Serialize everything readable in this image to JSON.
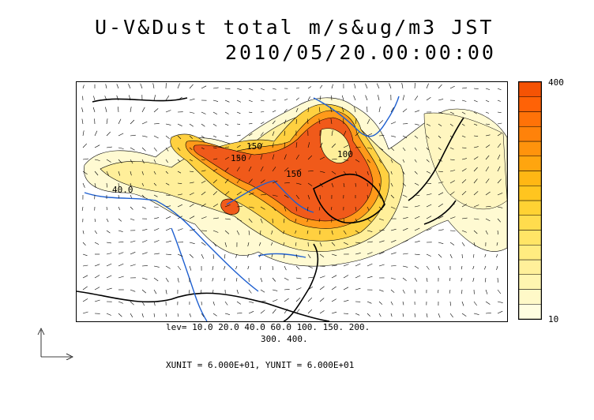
{
  "title": {
    "line1": "U-V&Dust total m/s&ug/m3 JST",
    "line2": "2010/05/20.00:00:00"
  },
  "colorbar": {
    "max_label": "400",
    "min_label": "10",
    "colors": [
      "#fffde0",
      "#fff9c8",
      "#fff5b0",
      "#fff09a",
      "#ffec80",
      "#ffe566",
      "#ffdc4d",
      "#ffd233",
      "#ffc51f",
      "#ffb714",
      "#ffa50f",
      "#ff930c",
      "#ff820a",
      "#ff7208",
      "#ff6206",
      "#f55304"
    ]
  },
  "levels": {
    "line1": "lev= 10.0 20.0 40.0 60.0 100. 150. 200.",
    "line2": "300. 400."
  },
  "units": "XUNIT = 6.000E+01, YUNIT = 6.000E+01",
  "contour_labels": [
    "40.0",
    "150",
    "150",
    "150",
    "100"
  ],
  "colors": {
    "rivers": "#1e5fd0",
    "coast": "#000000",
    "dust_core": "#f05a1a"
  }
}
